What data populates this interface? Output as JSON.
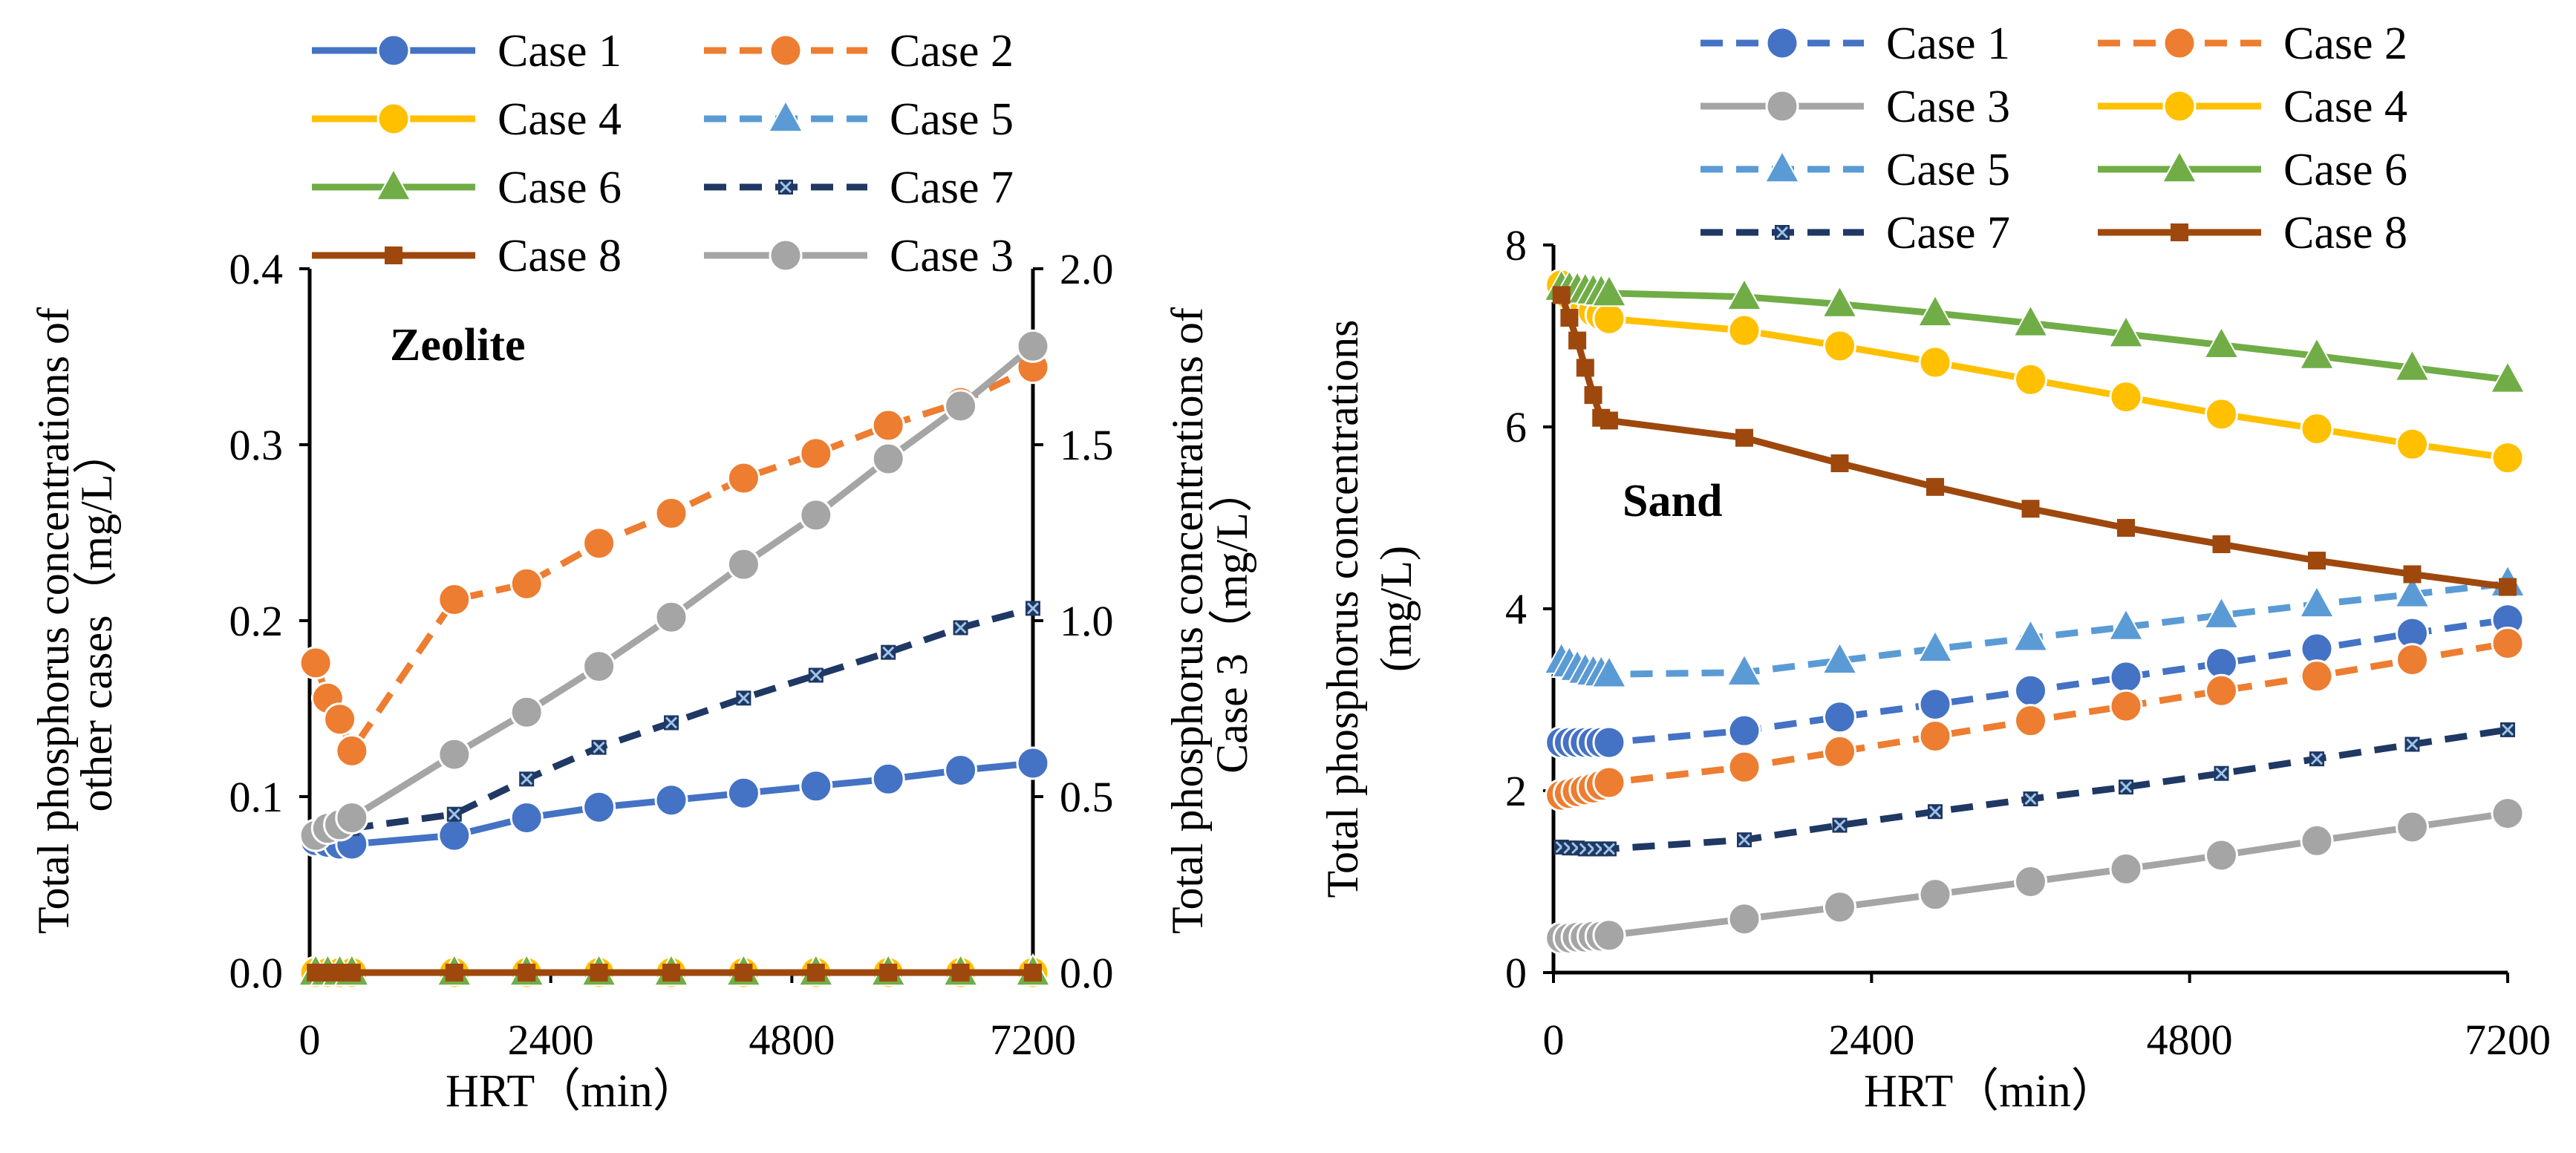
{
  "chart_data": [
    {
      "type": "line",
      "annotation": "Zeolite",
      "xlabel": "HRT（min）",
      "ylabel": "Total phosphorus concentrations of other cases（mg/L）",
      "y2label": "Total phosphorus concentrations of Case 3（mg/L）",
      "xlim": [
        0,
        7200
      ],
      "ylim": [
        0,
        0.4
      ],
      "y2lim": [
        0,
        2.0
      ],
      "xticks": [
        "0",
        "2400",
        "4800",
        "7200"
      ],
      "yticks": [
        "0.0",
        "0.1",
        "0.2",
        "0.3",
        "0.4"
      ],
      "y2ticks": [
        "0.0",
        "0.5",
        "1.0",
        "1.5",
        "2.0"
      ],
      "grid": false,
      "legend_position": "top",
      "series": [
        {
          "name": "Case 1",
          "color": "#4472C4",
          "dash": "solid",
          "marker": "circle",
          "axis": "left",
          "x": [
            60,
            180,
            300,
            420,
            1440,
            2160,
            2880,
            3600,
            4320,
            5040,
            5760,
            6480,
            7200
          ],
          "y": [
            0.075,
            0.074,
            0.073,
            0.073,
            0.078,
            0.088,
            0.094,
            0.098,
            0.102,
            0.106,
            0.11,
            0.115,
            0.119
          ]
        },
        {
          "name": "Case 2",
          "color": "#ED7D31",
          "dash": "dash",
          "marker": "circle",
          "axis": "left",
          "x": [
            60,
            180,
            300,
            420,
            1440,
            2160,
            2880,
            3600,
            4320,
            5040,
            5760,
            6480,
            7200
          ],
          "y": [
            0.176,
            0.156,
            0.144,
            0.126,
            0.212,
            0.221,
            0.244,
            0.261,
            0.281,
            0.295,
            0.311,
            0.324,
            0.344
          ]
        },
        {
          "name": "Case 4",
          "color": "#FFC000",
          "dash": "solid",
          "marker": "circle",
          "axis": "left",
          "x": [
            60,
            180,
            300,
            420,
            1440,
            2160,
            2880,
            3600,
            4320,
            5040,
            5760,
            6480,
            7200
          ],
          "y": [
            0,
            0,
            0,
            0,
            0,
            0,
            0,
            0,
            0,
            0,
            0,
            0,
            0
          ]
        },
        {
          "name": "Case 5",
          "color": "#5B9BD5",
          "dash": "dash",
          "marker": "triangle",
          "axis": "left",
          "x": [
            60,
            180,
            300,
            420,
            1440,
            2160,
            2880,
            3600,
            4320,
            5040,
            5760,
            6480,
            7200
          ],
          "y": [
            0,
            0,
            0,
            0,
            0,
            0,
            0,
            0,
            0,
            0,
            0,
            0,
            0
          ]
        },
        {
          "name": "Case 6",
          "color": "#70AD47",
          "dash": "solid",
          "marker": "triangle",
          "axis": "left",
          "x": [
            60,
            180,
            300,
            420,
            1440,
            2160,
            2880,
            3600,
            4320,
            5040,
            5760,
            6480,
            7200
          ],
          "y": [
            0,
            0,
            0,
            0,
            0,
            0,
            0,
            0,
            0,
            0,
            0,
            0,
            0
          ]
        },
        {
          "name": "Case 7",
          "color": "#1F3864",
          "dash": "dash",
          "marker": "x",
          "axis": "left",
          "x": [
            60,
            180,
            300,
            420,
            1440,
            2160,
            2880,
            3600,
            4320,
            5040,
            5760,
            6480,
            7200
          ],
          "y": [
            0.08,
            0.08,
            0.081,
            0.082,
            0.09,
            0.11,
            0.128,
            0.142,
            0.156,
            0.169,
            0.182,
            0.196,
            0.207
          ]
        },
        {
          "name": "Case 8",
          "color": "#9E480E",
          "dash": "solid",
          "marker": "square",
          "axis": "left",
          "x": [
            60,
            180,
            300,
            420,
            1440,
            2160,
            2880,
            3600,
            4320,
            5040,
            5760,
            6480,
            7200
          ],
          "y": [
            0,
            0,
            0,
            0,
            0,
            0,
            0,
            0,
            0,
            0,
            0,
            0,
            0
          ]
        },
        {
          "name": "Case 3",
          "color": "#A5A5A5",
          "dash": "solid",
          "marker": "circle",
          "axis": "right",
          "x": [
            60,
            180,
            300,
            420,
            1440,
            2160,
            2880,
            3600,
            4320,
            5040,
            5760,
            6480,
            7200
          ],
          "y": [
            0.39,
            0.41,
            0.42,
            0.44,
            0.62,
            0.74,
            0.87,
            1.01,
            1.16,
            1.3,
            1.46,
            1.61,
            1.78
          ]
        }
      ]
    },
    {
      "type": "line",
      "annotation": "Sand",
      "xlabel": "HRT（min）",
      "ylabel": "Total phosphorus concentrations (mg/L)",
      "xlim": [
        0,
        7200
      ],
      "ylim": [
        0,
        8
      ],
      "xticks": [
        "0",
        "2400",
        "4800",
        "7200"
      ],
      "yticks": [
        "0",
        "2",
        "4",
        "6",
        "8"
      ],
      "grid": false,
      "legend_position": "top",
      "series": [
        {
          "name": "Case 1",
          "color": "#4472C4",
          "dash": "dash",
          "marker": "circle",
          "x": [
            60,
            120,
            180,
            240,
            300,
            360,
            420,
            1440,
            2160,
            2880,
            3600,
            4320,
            5040,
            5760,
            6480,
            7200
          ],
          "y": [
            2.53,
            2.53,
            2.53,
            2.53,
            2.53,
            2.53,
            2.53,
            2.66,
            2.81,
            2.95,
            3.1,
            3.25,
            3.4,
            3.56,
            3.73,
            3.88
          ]
        },
        {
          "name": "Case 2",
          "color": "#ED7D31",
          "dash": "dash",
          "marker": "circle",
          "x": [
            60,
            120,
            180,
            240,
            300,
            360,
            420,
            1440,
            2160,
            2880,
            3600,
            4320,
            5040,
            5760,
            6480,
            7200
          ],
          "y": [
            1.95,
            1.97,
            1.99,
            2.01,
            2.03,
            2.06,
            2.09,
            2.26,
            2.43,
            2.6,
            2.77,
            2.93,
            3.1,
            3.26,
            3.44,
            3.62
          ]
        },
        {
          "name": "Case 3",
          "color": "#A5A5A5",
          "dash": "solid",
          "marker": "circle",
          "x": [
            60,
            120,
            180,
            240,
            300,
            360,
            420,
            1440,
            2160,
            2880,
            3600,
            4320,
            5040,
            5760,
            6480,
            7200
          ],
          "y": [
            0.38,
            0.38,
            0.39,
            0.39,
            0.4,
            0.4,
            0.41,
            0.59,
            0.72,
            0.86,
            1.0,
            1.14,
            1.29,
            1.45,
            1.6,
            1.75
          ]
        },
        {
          "name": "Case 4",
          "color": "#FFC000",
          "dash": "solid",
          "marker": "circle",
          "x": [
            60,
            120,
            180,
            240,
            300,
            360,
            420,
            1440,
            2160,
            2880,
            3600,
            4320,
            5040,
            5760,
            6480,
            7200
          ],
          "y": [
            7.56,
            7.45,
            7.38,
            7.32,
            7.27,
            7.23,
            7.19,
            7.06,
            6.89,
            6.71,
            6.52,
            6.33,
            6.14,
            5.98,
            5.81,
            5.66
          ]
        },
        {
          "name": "Case 5",
          "color": "#5B9BD5",
          "dash": "dash",
          "marker": "triangle",
          "x": [
            60,
            120,
            180,
            240,
            300,
            360,
            420,
            1440,
            2160,
            2880,
            3600,
            4320,
            5040,
            5760,
            6480,
            7200
          ],
          "y": [
            3.43,
            3.39,
            3.35,
            3.32,
            3.3,
            3.29,
            3.28,
            3.3,
            3.43,
            3.56,
            3.68,
            3.8,
            3.93,
            4.05,
            4.16,
            4.28
          ]
        },
        {
          "name": "Case 6",
          "color": "#70AD47",
          "dash": "solid",
          "marker": "triangle",
          "x": [
            60,
            120,
            180,
            240,
            300,
            360,
            420,
            1440,
            2160,
            2880,
            3600,
            4320,
            5040,
            5760,
            6480,
            7200
          ],
          "y": [
            7.53,
            7.52,
            7.51,
            7.5,
            7.49,
            7.48,
            7.47,
            7.43,
            7.35,
            7.25,
            7.14,
            7.02,
            6.9,
            6.78,
            6.65,
            6.52
          ]
        },
        {
          "name": "Case 7",
          "color": "#1F3864",
          "dash": "dash",
          "marker": "x",
          "x": [
            60,
            120,
            180,
            240,
            300,
            360,
            420,
            1440,
            2160,
            2880,
            3600,
            4320,
            5040,
            5760,
            6480,
            7200
          ],
          "y": [
            1.38,
            1.37,
            1.37,
            1.36,
            1.36,
            1.36,
            1.36,
            1.46,
            1.62,
            1.77,
            1.91,
            2.04,
            2.19,
            2.35,
            2.51,
            2.67
          ]
        },
        {
          "name": "Case 8",
          "color": "#9E480E",
          "dash": "solid",
          "marker": "square",
          "x": [
            60,
            120,
            180,
            240,
            300,
            360,
            420,
            1440,
            2160,
            2880,
            3600,
            4320,
            5040,
            5760,
            6480,
            7200
          ],
          "y": [
            7.45,
            7.2,
            6.95,
            6.65,
            6.35,
            6.1,
            6.07,
            5.88,
            5.6,
            5.34,
            5.1,
            4.89,
            4.71,
            4.53,
            4.38,
            4.24
          ]
        }
      ]
    }
  ]
}
